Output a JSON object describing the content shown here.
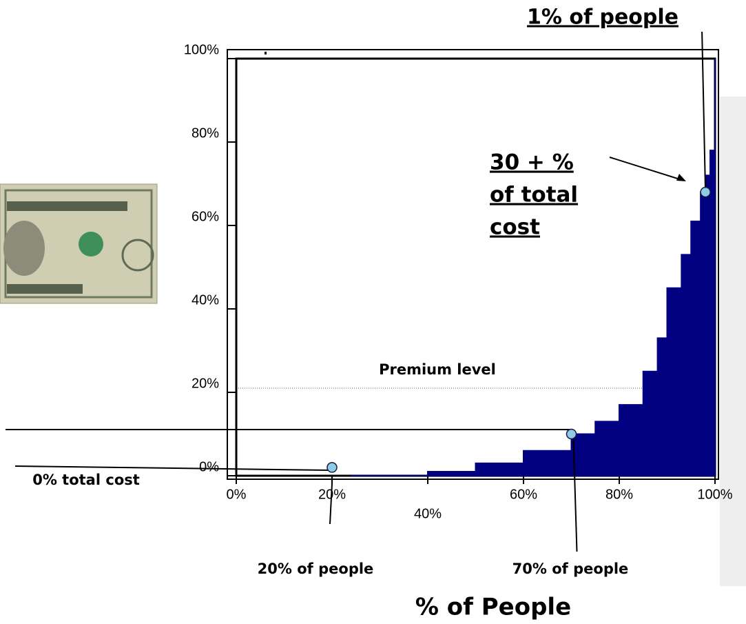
{
  "chart_data": {
    "type": "area",
    "color": "#000080",
    "x": [
      24,
      39,
      40,
      50,
      60,
      70,
      75,
      80,
      85,
      88,
      90,
      93,
      95,
      97,
      98,
      99,
      100
    ],
    "values": [
      0,
      0,
      1,
      3,
      6,
      10,
      13,
      17,
      25,
      33,
      45,
      53,
      61,
      68,
      72,
      78,
      100
    ],
    "xlim": [
      0,
      100
    ],
    "ylim": [
      0,
      100
    ],
    "xticks": [
      {
        "value": 0,
        "label": "0%"
      },
      {
        "value": 20,
        "label": "20%"
      },
      {
        "value": 40,
        "label": "40%"
      },
      {
        "value": 60,
        "label": "60%"
      },
      {
        "value": 80,
        "label": "80%"
      },
      {
        "value": 100,
        "label": "100%"
      }
    ],
    "yticks": [
      {
        "value": 0,
        "label": "0%"
      },
      {
        "value": 20,
        "label": "20%"
      },
      {
        "value": 40,
        "label": "40%"
      },
      {
        "value": 60,
        "label": "60%"
      },
      {
        "value": 80,
        "label": "80%"
      },
      {
        "value": 100,
        "label": "100%"
      }
    ],
    "x_label": "% of People",
    "premium_level": 21,
    "premium_label": "Premium level",
    "highlights": {
      "x": [
        20,
        70,
        98
      ],
      "y": [
        2,
        10,
        68
      ]
    },
    "annotations": {
      "top_people": "1% of people",
      "cost_lines": [
        "30 + %",
        "of total",
        "cost"
      ],
      "zero_cost": "0% total cost",
      "people_20": "20% of people",
      "people_70": "70% of people"
    }
  }
}
